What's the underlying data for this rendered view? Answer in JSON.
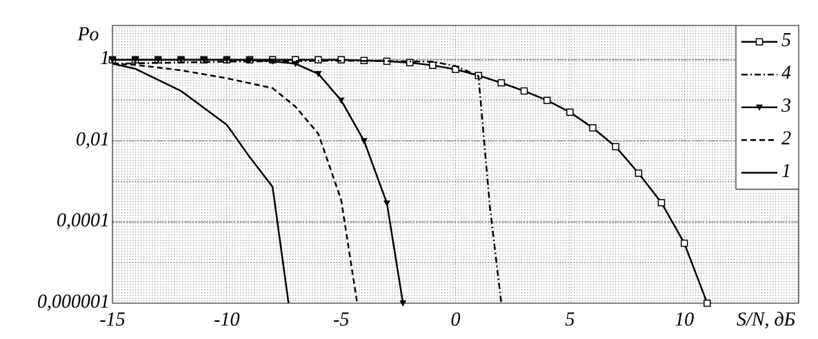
{
  "chart_data": {
    "type": "line",
    "y_label": "Po",
    "x_label": "S/N, дБ",
    "log_y": true,
    "grid": true,
    "xlim": [
      -15,
      15
    ],
    "xticks": [
      -15,
      -10,
      -5,
      0,
      5,
      10
    ],
    "ylim": [
      1e-06,
      7
    ],
    "yticks": [
      1,
      {
        "value": 0.01,
        "label": "0,01"
      },
      {
        "value": 0.0001,
        "label": "0,0001"
      },
      {
        "value": 1e-06,
        "label": "0,000001"
      }
    ],
    "legend": "upper right",
    "series": [
      {
        "name": "5",
        "color": "#000000",
        "style": "solid",
        "marker": "square",
        "x": [
          -15,
          -14,
          -13,
          -12,
          -11,
          -10,
          -9,
          -8,
          -7,
          -6,
          -5,
          -4,
          -3,
          -2,
          -1,
          0,
          1,
          2,
          3,
          4,
          5,
          6,
          7,
          8,
          9,
          10,
          11
        ],
        "values": [
          1,
          1,
          1,
          1,
          1,
          1,
          1,
          1,
          1,
          1,
          1,
          0.96,
          0.92,
          0.85,
          0.73,
          0.58,
          0.41,
          0.27,
          0.17,
          0.1,
          0.051,
          0.021,
          0.0072,
          0.0016,
          0.0003,
          3e-05,
          1e-06
        ]
      },
      {
        "name": "4",
        "color": "#000000",
        "style": "dashdot",
        "marker": "none",
        "x": [
          -15,
          -10,
          -5,
          -1,
          0,
          1,
          1.5,
          2
        ],
        "values": [
          0.8,
          0.9,
          0.95,
          0.9,
          0.7,
          0.4,
          0.00024,
          1e-06
        ]
      },
      {
        "name": "3",
        "color": "#000000",
        "style": "solid",
        "marker": "triangle-down",
        "x": [
          -15,
          -14,
          -13,
          -12,
          -11,
          -10,
          -9,
          -8,
          -7,
          -6,
          -5,
          -4,
          -3,
          -2.3
        ],
        "values": [
          1,
          1,
          1,
          1,
          1,
          1,
          0.98,
          0.92,
          0.8,
          0.45,
          0.1,
          0.01,
          0.00029,
          1e-06
        ]
      },
      {
        "name": "2",
        "color": "#000000",
        "style": "dashed",
        "marker": "none",
        "x": [
          -15,
          -14,
          -12,
          -10,
          -8,
          -7,
          -6,
          -5,
          -4.3
        ],
        "values": [
          0.8,
          0.75,
          0.55,
          0.35,
          0.2,
          0.07,
          0.015,
          0.00035,
          1e-06
        ]
      },
      {
        "name": "1",
        "color": "#000000",
        "style": "solid",
        "marker": "none",
        "x": [
          -15,
          -14,
          -12,
          -10,
          -9,
          -8,
          -7.3
        ],
        "values": [
          0.8,
          0.6,
          0.17,
          0.025,
          0.004,
          0.00074,
          1e-06
        ]
      }
    ]
  }
}
